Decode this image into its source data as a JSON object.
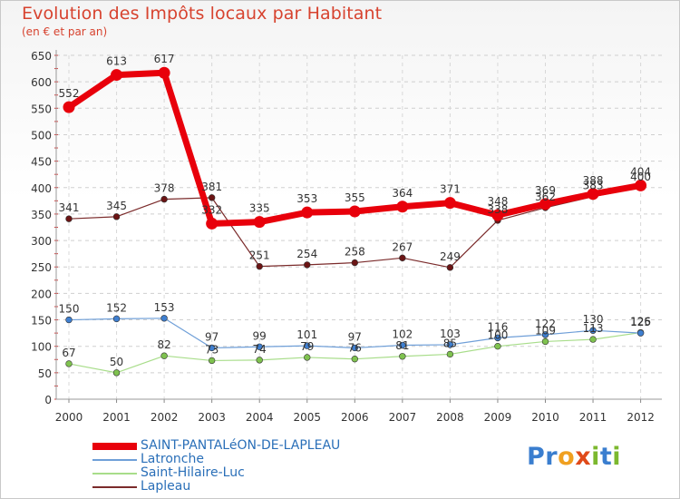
{
  "header": {
    "title": "Evolution des Impôts locaux par Habitant",
    "subtitle": "(en € et par an)"
  },
  "logo": {
    "text": "Proxiti",
    "letters": [
      "P",
      "r",
      "o",
      "x",
      "i",
      "t",
      "i"
    ],
    "colors": [
      "#3a7ecf",
      "#3a7ecf",
      "#f0a020",
      "#e04a1a",
      "#7cb82f",
      "#3a7ecf",
      "#7cb82f"
    ]
  },
  "chart_data": {
    "type": "line",
    "title": "Evolution des Impôts locaux par Habitant",
    "subtitle": "(en € et par an)",
    "xlabel": "",
    "ylabel": "",
    "x": [
      "2000",
      "2001",
      "2002",
      "2003",
      "2004",
      "2005",
      "2006",
      "2007",
      "2008",
      "2009",
      "2010",
      "2011",
      "2012"
    ],
    "ylim": [
      0,
      650
    ],
    "yticks": [
      0,
      50,
      100,
      150,
      200,
      250,
      300,
      350,
      400,
      450,
      500,
      550,
      600,
      650
    ],
    "grid": true,
    "legend_position": "bottom-left",
    "series": [
      {
        "name": "SAINT-PANTALéON-DE-LAPLEAU",
        "color": "#e8000b",
        "marker": "#e8000b",
        "width": 7,
        "values": [
          552,
          613,
          617,
          332,
          335,
          353,
          355,
          364,
          371,
          348,
          369,
          388,
          404
        ]
      },
      {
        "name": "Latronche",
        "color": "#6f9fd8",
        "marker": "#3f7fd0",
        "width": 1.2,
        "values": [
          150,
          152,
          153,
          97,
          99,
          101,
          97,
          102,
          103,
          116,
          122,
          130,
          125
        ]
      },
      {
        "name": "Saint-Hilaire-Luc",
        "color": "#a8dd8a",
        "marker": "#7fc24f",
        "width": 1.2,
        "values": [
          67,
          50,
          82,
          73,
          74,
          79,
          76,
          81,
          85,
          100,
          109,
          113,
          126
        ]
      },
      {
        "name": "Lapleau",
        "color": "#7b2b2b",
        "marker": "#6b1414",
        "width": 1.2,
        "values": [
          341,
          345,
          378,
          381,
          251,
          254,
          258,
          267,
          249,
          338,
          362,
          383,
          400
        ]
      }
    ]
  }
}
